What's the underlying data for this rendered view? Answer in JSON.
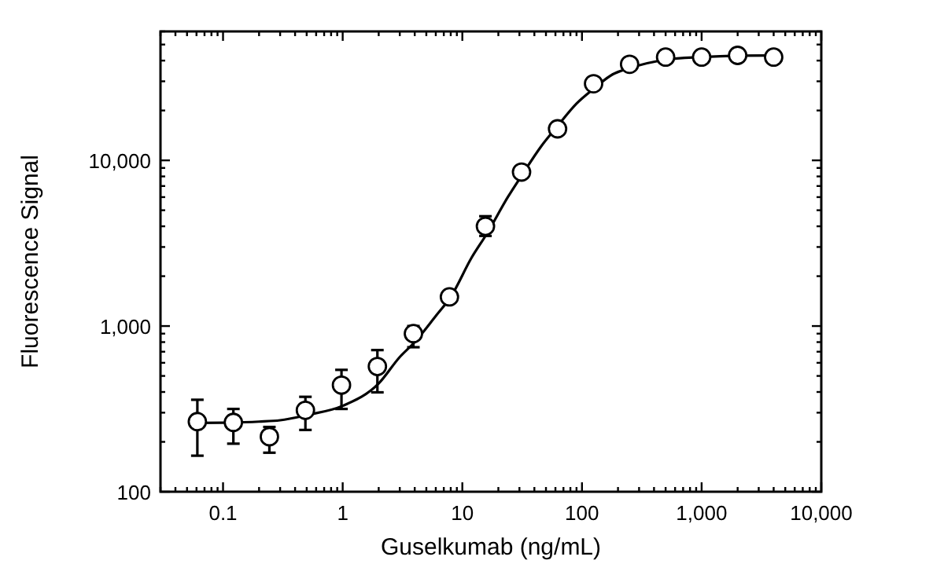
{
  "chart_data": {
    "type": "scatter",
    "xlabel": "Guselkumab (ng/mL)",
    "ylabel": "Fluorescence Signal",
    "log": "xy",
    "grid": false,
    "xlim": [
      0.03,
      10000
    ],
    "xticks": [
      {
        "value": 0.1,
        "label": "0.1"
      },
      {
        "value": 1,
        "label": "1"
      },
      {
        "value": 10,
        "label": "10"
      },
      {
        "value": 100,
        "label": "100"
      },
      {
        "value": 1000,
        "label": "1,000"
      },
      {
        "value": 10000,
        "label": "10,000"
      }
    ],
    "ylim": [
      100,
      60000
    ],
    "yticks": [
      {
        "value": 100,
        "label": "100"
      },
      {
        "value": 1000,
        "label": "1,000"
      },
      {
        "value": 10000,
        "label": "10,000"
      }
    ],
    "series": [
      {
        "type": "line",
        "color": "#000000",
        "marker": "none",
        "line_style": "solid",
        "x": [
          0.06,
          0.1,
          0.2,
          0.3,
          0.5,
          1,
          2,
          3,
          4,
          6,
          8,
          12,
          16,
          24,
          31,
          45,
          62,
          90,
          125,
          180,
          250,
          500,
          1000,
          2000,
          4000
        ],
        "values": [
          260,
          261,
          265,
          270,
          290,
          330,
          450,
          650,
          800,
          1150,
          1500,
          2600,
          3600,
          6000,
          8000,
          12000,
          16000,
          22000,
          27000,
          33000,
          36000,
          40500,
          42000,
          42800,
          43000
        ]
      },
      {
        "color": "#000000",
        "marker": "circle",
        "x": [
          0.061,
          0.122,
          0.244,
          0.488,
          0.977,
          1.95,
          3.9,
          7.8,
          15.6,
          31.25,
          62.5,
          125,
          250,
          500,
          1000,
          2000,
          4000
        ],
        "values": [
          265,
          262,
          215,
          310,
          440,
          570,
          900,
          1500,
          4000,
          8500,
          15500,
          29000,
          38000,
          42000,
          42000,
          43000,
          42000
        ],
        "errors": [
          [
            165,
            359
          ],
          [
            195,
            316
          ],
          [
            172,
            246
          ],
          [
            236,
            374
          ],
          [
            316,
            544
          ],
          [
            398,
            716
          ],
          [
            745,
            1000
          ],
          null,
          [
            3500,
            4600
          ],
          null,
          null,
          null,
          null,
          null,
          null,
          null,
          null
        ]
      }
    ]
  }
}
